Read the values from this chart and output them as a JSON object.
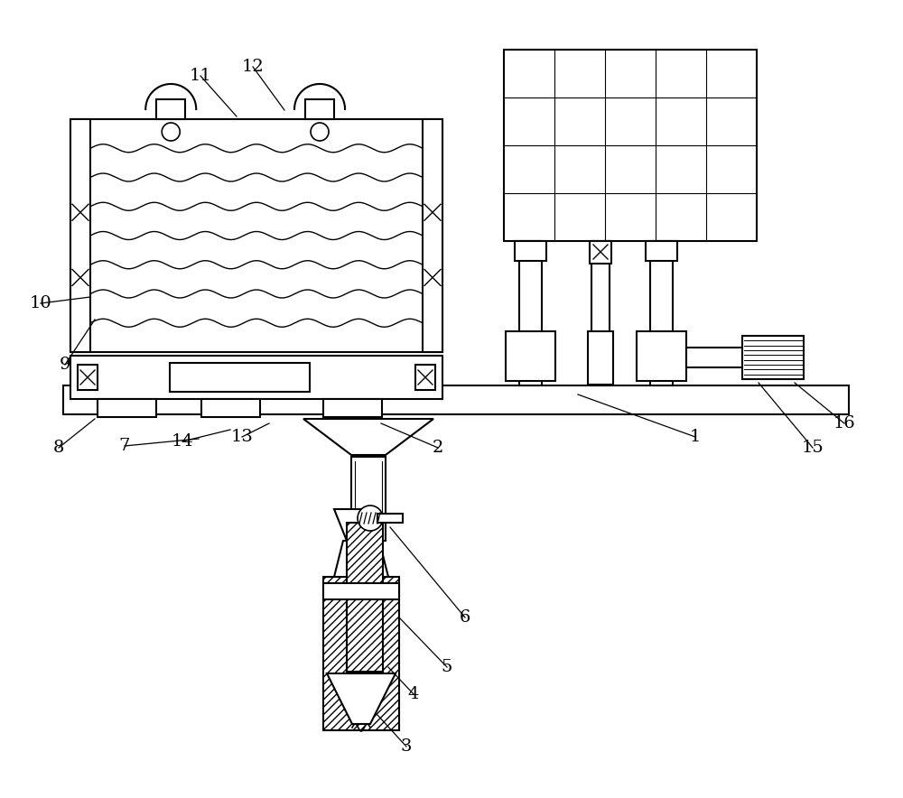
{
  "bg_color": "#ffffff",
  "line_color": "#000000",
  "figure_width": 10.0,
  "figure_height": 8.84,
  "dpi": 100
}
